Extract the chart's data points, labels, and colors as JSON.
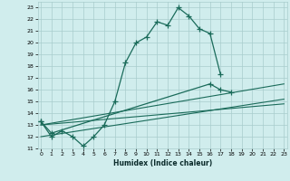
{
  "xlabel": "Humidex (Indice chaleur)",
  "x_values": [
    0,
    1,
    2,
    3,
    4,
    5,
    6,
    7,
    8,
    9,
    10,
    11,
    12,
    13,
    14,
    15,
    16,
    17,
    18,
    19,
    20,
    21,
    22,
    23
  ],
  "line1_y": [
    13.3,
    12.0,
    12.5,
    12.0,
    11.2,
    12.0,
    13.0,
    15.0,
    18.3,
    20.0,
    20.5,
    21.8,
    21.5,
    23.0,
    22.3,
    21.2,
    20.8,
    17.3,
    null,
    null,
    null,
    null,
    null,
    null
  ],
  "line2_y": [
    13.3,
    12.3,
    null,
    null,
    null,
    null,
    null,
    null,
    null,
    null,
    null,
    null,
    null,
    null,
    null,
    null,
    16.5,
    16.0,
    15.8,
    null,
    null,
    null,
    null,
    null
  ],
  "trend1_x": [
    0,
    23
  ],
  "trend1_y": [
    13.0,
    16.5
  ],
  "trend2_x": [
    0,
    23
  ],
  "trend2_y": [
    12.0,
    15.2
  ],
  "trend3_x": [
    0,
    23
  ],
  "trend3_y": [
    13.0,
    14.8
  ],
  "color": "#1a6b5a",
  "bg_color": "#d0eded",
  "grid_color": "#a8cccc",
  "ylim": [
    11,
    23.5
  ],
  "xlim": [
    -0.3,
    23.3
  ],
  "yticks": [
    11,
    12,
    13,
    14,
    15,
    16,
    17,
    18,
    19,
    20,
    21,
    22,
    23
  ],
  "xticks": [
    0,
    1,
    2,
    3,
    4,
    5,
    6,
    7,
    8,
    9,
    10,
    11,
    12,
    13,
    14,
    15,
    16,
    17,
    18,
    19,
    20,
    21,
    22,
    23
  ]
}
